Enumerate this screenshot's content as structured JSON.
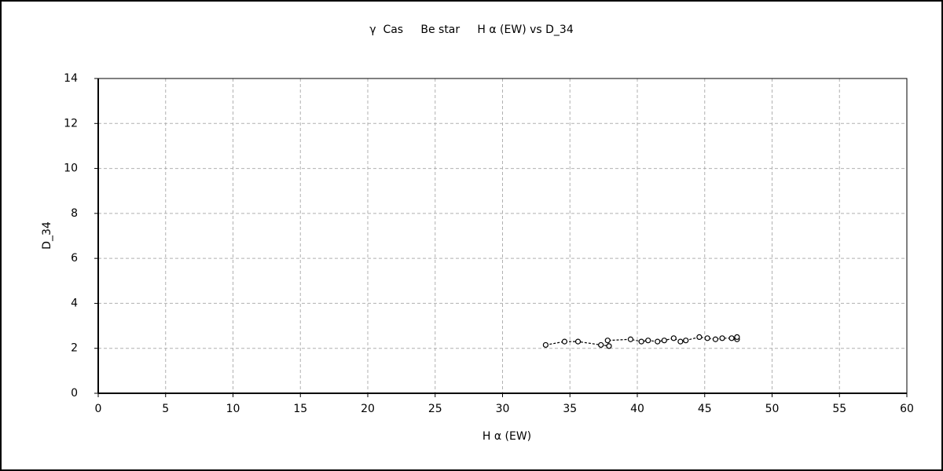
{
  "chart_data": {
    "type": "scatter",
    "line": true,
    "line_style": "dashed",
    "title": "γ  Cas     Be star     H α (EW) vs D_34",
    "x_label": "H α (EW)",
    "y_label": "D_34",
    "x": [
      33.2,
      34.6,
      35.6,
      37.3,
      37.9,
      37.8,
      39.5,
      40.3,
      40.8,
      41.5,
      42.0,
      42.7,
      43.2,
      43.6,
      44.6,
      45.2,
      45.8,
      46.3,
      47.0,
      47.4,
      47.4
    ],
    "values": [
      2.15,
      2.3,
      2.3,
      2.15,
      2.1,
      2.35,
      2.4,
      2.3,
      2.35,
      2.3,
      2.35,
      2.45,
      2.3,
      2.35,
      2.5,
      2.45,
      2.4,
      2.45,
      2.45,
      2.4,
      2.5
    ],
    "color": "#000000",
    "xlim": [
      0,
      60
    ],
    "xticks": [
      0,
      5,
      10,
      15,
      20,
      25,
      30,
      35,
      40,
      45,
      50,
      55,
      60
    ],
    "ylim": [
      0,
      14
    ],
    "yticks": [
      0,
      2,
      4,
      6,
      8,
      10,
      12,
      14
    ],
    "grid": true
  }
}
